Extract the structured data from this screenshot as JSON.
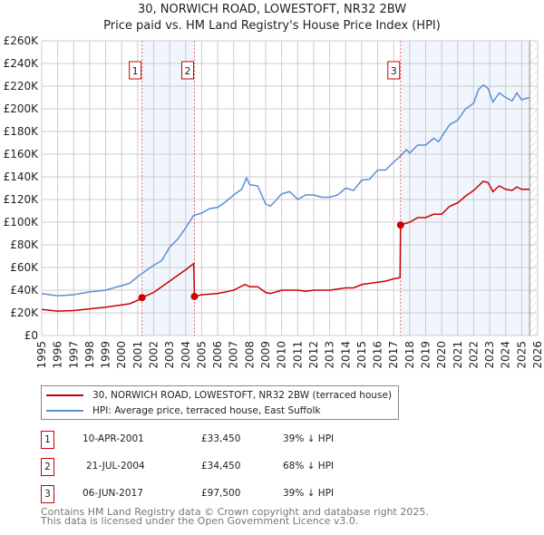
{
  "chart_data": {
    "type": "line",
    "title": "30, NORWICH ROAD, LOWESTOFT, NR32 2BW",
    "subtitle": "Price paid vs. HM Land Registry's House Price Index (HPI)",
    "xlim": [
      1995,
      2026
    ],
    "ylim": [
      0,
      260000
    ],
    "yticks": [
      "£0",
      "£20K",
      "£40K",
      "£60K",
      "£80K",
      "£100K",
      "£120K",
      "£140K",
      "£160K",
      "£180K",
      "£200K",
      "£220K",
      "£240K",
      "£260K"
    ],
    "xticks": [
      "1995",
      "1996",
      "1997",
      "1998",
      "1999",
      "2000",
      "2001",
      "2002",
      "2003",
      "2004",
      "2005",
      "2006",
      "2007",
      "2008",
      "2009",
      "2010",
      "2011",
      "2012",
      "2013",
      "2014",
      "2015",
      "2016",
      "2017",
      "2018",
      "2019",
      "2020",
      "2021",
      "2022",
      "2023",
      "2024",
      "2025",
      "2026"
    ],
    "grid": true,
    "data_end": 2025.5,
    "series": [
      {
        "name": "30, NORWICH ROAD, LOWESTOFT, NR32 2BW (terraced house)",
        "color": "#cc0000",
        "points": [
          [
            1995,
            23
          ],
          [
            1996,
            21.5
          ],
          [
            1997,
            22
          ],
          [
            1998,
            23.5
          ],
          [
            1999,
            25
          ],
          [
            2000,
            27
          ],
          [
            2000.5,
            28
          ],
          [
            2001,
            31
          ],
          [
            2001.27,
            33.45
          ],
          [
            2002,
            38
          ],
          [
            2002.5,
            43
          ],
          [
            2003,
            48
          ],
          [
            2003.5,
            53
          ],
          [
            2004,
            58
          ],
          [
            2004.5,
            63.5
          ],
          [
            2004.55,
            34.45
          ],
          [
            2005,
            36
          ],
          [
            2006,
            37
          ],
          [
            2007,
            40
          ],
          [
            2007.7,
            45
          ],
          [
            2008,
            43
          ],
          [
            2008.5,
            43
          ],
          [
            2009,
            38
          ],
          [
            2009.3,
            37
          ],
          [
            2010,
            40
          ],
          [
            2011,
            40
          ],
          [
            2011.5,
            39
          ],
          [
            2012,
            40
          ],
          [
            2013,
            40
          ],
          [
            2014,
            42
          ],
          [
            2014.5,
            42
          ],
          [
            2015,
            45
          ],
          [
            2016,
            47
          ],
          [
            2016.5,
            48
          ],
          [
            2017,
            50
          ],
          [
            2017.4,
            51
          ],
          [
            2017.43,
            97.5
          ],
          [
            2018,
            100
          ],
          [
            2018.5,
            104
          ],
          [
            2019,
            104
          ],
          [
            2019.5,
            107
          ],
          [
            2020,
            107
          ],
          [
            2020.5,
            114
          ],
          [
            2021,
            117
          ],
          [
            2021.5,
            123
          ],
          [
            2022,
            128
          ],
          [
            2022.6,
            136
          ],
          [
            2022.9,
            135
          ],
          [
            2023.2,
            127
          ],
          [
            2023.6,
            132
          ],
          [
            2024,
            129
          ],
          [
            2024.4,
            128
          ],
          [
            2024.7,
            131
          ],
          [
            2025,
            129
          ],
          [
            2025.5,
            129
          ]
        ]
      },
      {
        "name": "HPI: Average price, terraced house, East Suffolk",
        "color": "#5b8fd4",
        "points": [
          [
            1995,
            37
          ],
          [
            1996,
            35
          ],
          [
            1997,
            36
          ],
          [
            1998,
            38.5
          ],
          [
            1999,
            40
          ],
          [
            2000,
            44
          ],
          [
            2000.5,
            46
          ],
          [
            2001,
            52
          ],
          [
            2001.3,
            55
          ],
          [
            2002,
            62
          ],
          [
            2002.5,
            66
          ],
          [
            2003,
            78
          ],
          [
            2003.5,
            85
          ],
          [
            2004,
            95
          ],
          [
            2004.5,
            106
          ],
          [
            2005,
            108
          ],
          [
            2005.5,
            112
          ],
          [
            2006,
            113
          ],
          [
            2006.5,
            118
          ],
          [
            2007,
            124
          ],
          [
            2007.5,
            129
          ],
          [
            2007.8,
            139
          ],
          [
            2008,
            133
          ],
          [
            2008.5,
            132
          ],
          [
            2009,
            116
          ],
          [
            2009.3,
            114
          ],
          [
            2010,
            125
          ],
          [
            2010.5,
            127
          ],
          [
            2011,
            120
          ],
          [
            2011.5,
            124
          ],
          [
            2012,
            124
          ],
          [
            2012.5,
            122
          ],
          [
            2013,
            122
          ],
          [
            2013.5,
            124
          ],
          [
            2014,
            130
          ],
          [
            2014.5,
            128
          ],
          [
            2015,
            137
          ],
          [
            2015.5,
            138
          ],
          [
            2016,
            146
          ],
          [
            2016.5,
            146
          ],
          [
            2017,
            153
          ],
          [
            2017.4,
            158
          ],
          [
            2017.8,
            164
          ],
          [
            2018,
            161
          ],
          [
            2018.5,
            168
          ],
          [
            2019,
            168
          ],
          [
            2019.5,
            174
          ],
          [
            2019.8,
            171
          ],
          [
            2020.5,
            186
          ],
          [
            2021,
            190
          ],
          [
            2021.5,
            200
          ],
          [
            2022,
            205
          ],
          [
            2022.3,
            217
          ],
          [
            2022.6,
            221
          ],
          [
            2022.9,
            218
          ],
          [
            2023.2,
            206
          ],
          [
            2023.6,
            214
          ],
          [
            2024,
            210
          ],
          [
            2024.4,
            207
          ],
          [
            2024.7,
            214
          ],
          [
            2025,
            208
          ],
          [
            2025.5,
            210
          ]
        ]
      }
    ],
    "sales": [
      {
        "id": "1",
        "x": 2001.27,
        "price": 33450,
        "date": "10-APR-2001",
        "price_label": "£33,450",
        "hpi": "39% ↓ HPI"
      },
      {
        "id": "2",
        "x": 2004.55,
        "price": 34450,
        "date": "21-JUL-2004",
        "price_label": "£34,450",
        "hpi": "68% ↓ HPI"
      },
      {
        "id": "3",
        "x": 2017.43,
        "price": 97500,
        "date": "06-JUN-2017",
        "price_label": "£97,500",
        "hpi": "39% ↓ HPI"
      }
    ]
  },
  "footer": {
    "line1": "Contains HM Land Registry data © Crown copyright and database right 2025.",
    "line2": "This data is licensed under the Open Government Licence v3.0."
  }
}
